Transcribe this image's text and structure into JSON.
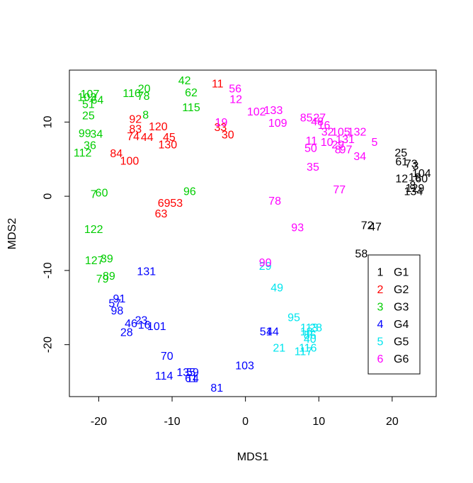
{
  "chart_data": {
    "type": "scatter",
    "xlabel": "MDS1",
    "ylabel": "MDS2",
    "xlim": [
      -24,
      26
    ],
    "ylim": [
      -27,
      17
    ],
    "x_ticks": [
      -20,
      -10,
      0,
      10,
      20
    ],
    "y_ticks": [
      -20,
      -10,
      0,
      10
    ],
    "legend_position": "bottom-right",
    "grid": false,
    "series": [
      {
        "name": "G1",
        "color": "#000000",
        "points": [
          {
            "label": "25",
            "x": 21.2,
            "y": 5.8
          },
          {
            "label": "61",
            "x": 21.3,
            "y": 4.6
          },
          {
            "label": "73",
            "x": 22.6,
            "y": 4.3
          },
          {
            "label": "3",
            "x": 23.2,
            "y": 4.0
          },
          {
            "label": "12",
            "x": 21.3,
            "y": 2.3
          },
          {
            "label": "18",
            "x": 23.1,
            "y": 2.5
          },
          {
            "label": "60",
            "x": 24.0,
            "y": 2.3
          },
          {
            "label": "104",
            "x": 24.0,
            "y": 3.0
          },
          {
            "label": "8",
            "x": 22.8,
            "y": 1.4
          },
          {
            "label": "129",
            "x": 23.1,
            "y": 1.0
          },
          {
            "label": "134",
            "x": 22.9,
            "y": 0.6
          },
          {
            "label": "72",
            "x": 16.6,
            "y": -4.0
          },
          {
            "label": "47",
            "x": 17.7,
            "y": -4.2
          },
          {
            "label": "58",
            "x": 15.8,
            "y": -7.8
          }
        ]
      },
      {
        "name": "G2",
        "color": "#ff0000",
        "points": [
          {
            "label": "11",
            "x": -3.8,
            "y": 15.1
          },
          {
            "label": "92",
            "x": -15.0,
            "y": 10.3
          },
          {
            "label": "83",
            "x": -15.0,
            "y": 9.0
          },
          {
            "label": "120",
            "x": -11.9,
            "y": 9.3
          },
          {
            "label": "74",
            "x": -15.3,
            "y": 8.0
          },
          {
            "label": "44",
            "x": -13.4,
            "y": 7.9
          },
          {
            "label": "45",
            "x": -10.4,
            "y": 7.9
          },
          {
            "label": "130",
            "x": -10.6,
            "y": 6.9
          },
          {
            "label": "84",
            "x": -17.6,
            "y": 5.7
          },
          {
            "label": "100",
            "x": -15.8,
            "y": 4.7
          },
          {
            "label": "33",
            "x": -3.4,
            "y": 9.2
          },
          {
            "label": "30",
            "x": -2.4,
            "y": 8.2
          },
          {
            "label": "69",
            "x": -11.1,
            "y": -1.0
          },
          {
            "label": "53",
            "x": -9.4,
            "y": -1.0
          },
          {
            "label": "63",
            "x": -11.5,
            "y": -2.4
          }
        ]
      },
      {
        "name": "G3",
        "color": "#00cd00",
        "points": [
          {
            "label": "42",
            "x": -8.3,
            "y": 15.5
          },
          {
            "label": "20",
            "x": -13.8,
            "y": 14.4
          },
          {
            "label": "116",
            "x": -15.5,
            "y": 13.8
          },
          {
            "label": "78",
            "x": -13.9,
            "y": 13.4
          },
          {
            "label": "62",
            "x": -7.4,
            "y": 13.9
          },
          {
            "label": "115",
            "x": -7.4,
            "y": 11.9
          },
          {
            "label": "107",
            "x": -21.2,
            "y": 13.7
          },
          {
            "label": "103",
            "x": -21.6,
            "y": 13.3
          },
          {
            "label": "64",
            "x": -20.2,
            "y": 12.9
          },
          {
            "label": "51",
            "x": -21.4,
            "y": 12.3
          },
          {
            "label": "25",
            "x": -21.4,
            "y": 10.8
          },
          {
            "label": "8",
            "x": -13.6,
            "y": 10.9
          },
          {
            "label": "99",
            "x": -21.9,
            "y": 8.4
          },
          {
            "label": "34",
            "x": -20.3,
            "y": 8.3
          },
          {
            "label": "36",
            "x": -21.2,
            "y": 6.8
          },
          {
            "label": "112",
            "x": -22.2,
            "y": 5.8
          },
          {
            "label": "60",
            "x": -19.6,
            "y": 0.4
          },
          {
            "label": "7",
            "x": -20.7,
            "y": 0.2
          },
          {
            "label": "96",
            "x": -7.6,
            "y": 0.6
          },
          {
            "label": "122",
            "x": -20.7,
            "y": -4.5
          },
          {
            "label": "39",
            "x": -18.9,
            "y": -8.5
          },
          {
            "label": "127",
            "x": -20.6,
            "y": -8.7
          },
          {
            "label": "89",
            "x": -18.6,
            "y": -10.8
          },
          {
            "label": "79",
            "x": -19.5,
            "y": -11.2
          }
        ]
      },
      {
        "name": "G4",
        "color": "#0000ff",
        "points": [
          {
            "label": "131",
            "x": -13.5,
            "y": -10.2
          },
          {
            "label": "91",
            "x": -17.2,
            "y": -13.9
          },
          {
            "label": "57",
            "x": -17.8,
            "y": -14.5
          },
          {
            "label": "98",
            "x": -17.5,
            "y": -15.5
          },
          {
            "label": "23",
            "x": -14.2,
            "y": -16.8
          },
          {
            "label": "46",
            "x": -15.6,
            "y": -17.2
          },
          {
            "label": "16",
            "x": -13.8,
            "y": -17.4
          },
          {
            "label": "101",
            "x": -12.1,
            "y": -17.6
          },
          {
            "label": "28",
            "x": -16.2,
            "y": -18.4
          },
          {
            "label": "70",
            "x": -10.7,
            "y": -21.6
          },
          {
            "label": "114",
            "x": -11.1,
            "y": -24.3
          },
          {
            "label": "135",
            "x": -8.1,
            "y": -23.8
          },
          {
            "label": "59",
            "x": -7.2,
            "y": -23.8
          },
          {
            "label": "61",
            "x": -7.4,
            "y": -24.6
          },
          {
            "label": "14",
            "x": -7.2,
            "y": -24.6
          },
          {
            "label": "103",
            "x": -0.1,
            "y": -22.9
          },
          {
            "label": "81",
            "x": -3.9,
            "y": -25.9
          },
          {
            "label": "51",
            "x": 2.8,
            "y": -18.3
          },
          {
            "label": "44",
            "x": 3.7,
            "y": -18.3
          }
        ]
      },
      {
        "name": "G5",
        "color": "#00e5ee",
        "points": [
          {
            "label": "29",
            "x": 2.7,
            "y": -9.5
          },
          {
            "label": "49",
            "x": 4.3,
            "y": -12.4
          },
          {
            "label": "95",
            "x": 6.6,
            "y": -16.4
          },
          {
            "label": "113",
            "x": 8.7,
            "y": -17.8
          },
          {
            "label": "28",
            "x": 9.6,
            "y": -17.8
          },
          {
            "label": "18",
            "x": 8.3,
            "y": -18.3
          },
          {
            "label": "86",
            "x": 8.8,
            "y": -18.8
          },
          {
            "label": "40",
            "x": 8.8,
            "y": -19.3
          },
          {
            "label": "21",
            "x": 4.6,
            "y": -20.5
          },
          {
            "label": "116",
            "x": 8.5,
            "y": -20.5
          },
          {
            "label": "117",
            "x": 7.9,
            "y": -21.0
          }
        ]
      },
      {
        "name": "G6",
        "color": "#ff00ff",
        "points": [
          {
            "label": "56",
            "x": -1.4,
            "y": 14.4
          },
          {
            "label": "12",
            "x": -1.3,
            "y": 13.0
          },
          {
            "label": "133",
            "x": 3.8,
            "y": 11.5
          },
          {
            "label": "102",
            "x": 1.5,
            "y": 11.3
          },
          {
            "label": "109",
            "x": 4.4,
            "y": 9.8
          },
          {
            "label": "19",
            "x": -3.3,
            "y": 9.9
          },
          {
            "label": "85",
            "x": 8.3,
            "y": 10.5
          },
          {
            "label": "27",
            "x": 10.1,
            "y": 10.5
          },
          {
            "label": "48",
            "x": 9.8,
            "y": 10.0
          },
          {
            "label": "16",
            "x": 10.7,
            "y": 9.5
          },
          {
            "label": "32",
            "x": 11.2,
            "y": 8.6
          },
          {
            "label": "105",
            "x": 13.0,
            "y": 8.6
          },
          {
            "label": "132",
            "x": 15.2,
            "y": 8.6
          },
          {
            "label": "131",
            "x": 13.6,
            "y": 7.6
          },
          {
            "label": "5",
            "x": 17.6,
            "y": 7.2
          },
          {
            "label": "11",
            "x": 9.0,
            "y": 7.4
          },
          {
            "label": "10",
            "x": 11.1,
            "y": 7.2
          },
          {
            "label": "29",
            "x": 12.6,
            "y": 6.9
          },
          {
            "label": "50",
            "x": 8.9,
            "y": 6.4
          },
          {
            "label": "8",
            "x": 12.6,
            "y": 6.2
          },
          {
            "label": "97",
            "x": 13.7,
            "y": 6.2
          },
          {
            "label": "34",
            "x": 15.6,
            "y": 5.3
          },
          {
            "label": "35",
            "x": 9.2,
            "y": 3.9
          },
          {
            "label": "77",
            "x": 12.8,
            "y": 0.8
          },
          {
            "label": "78",
            "x": 4.0,
            "y": -0.7
          },
          {
            "label": "93",
            "x": 7.1,
            "y": -4.3
          },
          {
            "label": "90",
            "x": 2.7,
            "y": -9.0
          }
        ]
      }
    ]
  }
}
